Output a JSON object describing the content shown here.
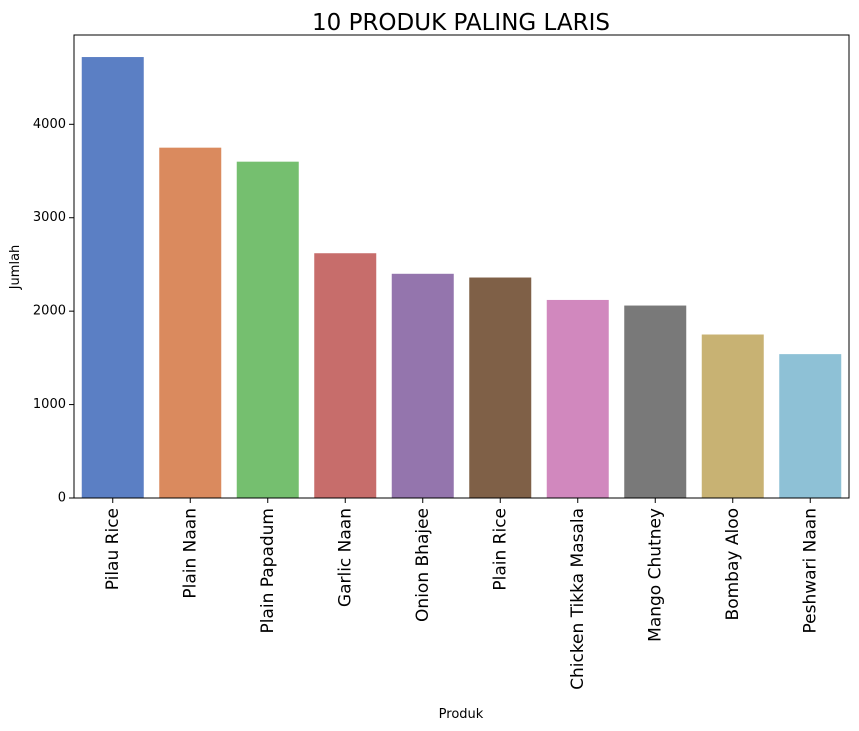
{
  "chart_data": {
    "type": "bar",
    "title": "10 PRODUK PALING LARIS",
    "xlabel": "Produk",
    "ylabel": "Jumlah",
    "categories": [
      "Pilau Rice",
      "Plain Naan",
      "Plain Papadum",
      "Garlic Naan",
      "Onion Bhajee",
      "Plain Rice",
      "Chicken Tikka Masala",
      "Mango Chutney",
      "Bombay Aloo",
      "Peshwari Naan"
    ],
    "values": [
      4720,
      3750,
      3600,
      2620,
      2400,
      2360,
      2120,
      2060,
      1750,
      1540
    ],
    "colors": [
      "#5b7fc4",
      "#da8a5e",
      "#75bf6f",
      "#c76d6b",
      "#9475ad",
      "#7f6047",
      "#d188be",
      "#797979",
      "#c8b273",
      "#8ec1d6"
    ],
    "yticks": [
      0,
      1000,
      2000,
      3000,
      4000
    ],
    "ylim": [
      0,
      4956
    ],
    "grid": false,
    "legend": "none"
  }
}
